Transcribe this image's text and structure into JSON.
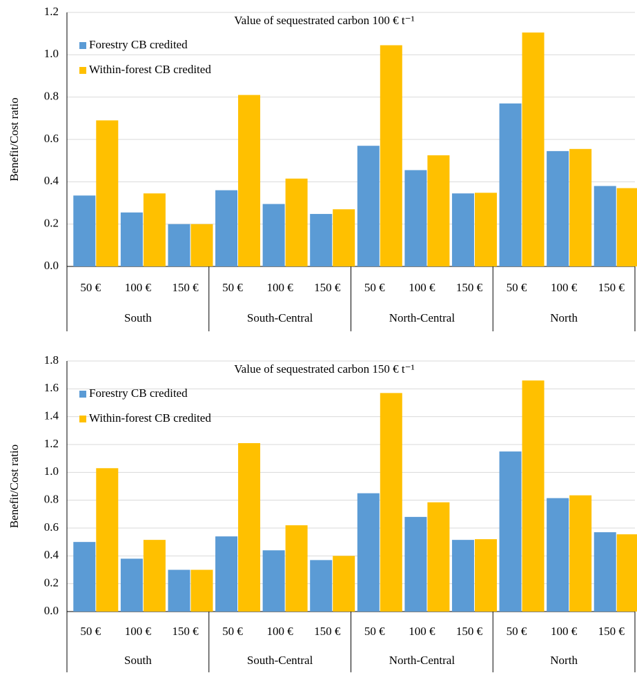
{
  "chart_data": [
    {
      "type": "bar",
      "title": "Value of sequestrated carbon 100 € t⁻¹",
      "y_label": "Benefit/Cost ratio",
      "categories": [
        "50 €",
        "100 €",
        "150 €",
        "50 €",
        "100 €",
        "150 €",
        "50 €",
        "100 €",
        "150 €",
        "50 €",
        "100 €",
        "150 €"
      ],
      "groups": [
        "South",
        "South-Central",
        "North-Central",
        "North"
      ],
      "series": [
        {
          "name": "Forestry CB credited",
          "color": "#5b9bd5",
          "values": [
            0.335,
            0.255,
            0.2,
            0.36,
            0.295,
            0.248,
            0.57,
            0.455,
            0.345,
            0.77,
            0.545,
            0.38
          ]
        },
        {
          "name": "Within-forest CB credited",
          "color": "#ffc000",
          "values": [
            0.69,
            0.345,
            0.2,
            0.81,
            0.415,
            0.27,
            1.045,
            0.525,
            0.348,
            1.105,
            0.555,
            0.37
          ]
        }
      ],
      "ylim": [
        0,
        1.2
      ],
      "yticks": [
        {
          "value": 0,
          "label": "0.0"
        },
        0.2,
        0.4,
        0.6,
        0.8,
        {
          "value": 1,
          "label": "1.0"
        },
        1.2
      ],
      "grid": true,
      "legend": "upper left"
    },
    {
      "type": "bar",
      "title": "Value of sequestrated carbon 150 € t⁻¹",
      "y_label": "Benefit/Cost ratio",
      "categories": [
        "50 €",
        "100 €",
        "150 €",
        "50 €",
        "100 €",
        "150 €",
        "50 €",
        "100 €",
        "150 €",
        "50 €",
        "100 €",
        "150 €"
      ],
      "groups": [
        "South",
        "South-Central",
        "North-Central",
        "North"
      ],
      "series": [
        {
          "name": "Forestry CB credited",
          "color": "#5b9bd5",
          "values": [
            0.5,
            0.38,
            0.3,
            0.54,
            0.44,
            0.37,
            0.85,
            0.68,
            0.515,
            1.15,
            0.815,
            0.57
          ]
        },
        {
          "name": "Within-forest CB credited",
          "color": "#ffc000",
          "values": [
            1.03,
            0.515,
            0.3,
            1.21,
            0.62,
            0.4,
            1.57,
            0.785,
            0.52,
            1.66,
            0.835,
            0.555
          ]
        }
      ],
      "ylim": [
        0,
        1.8
      ],
      "yticks": [
        {
          "value": 0,
          "label": "0.0"
        },
        0.2,
        0.4,
        0.6,
        0.8,
        {
          "value": 1,
          "label": "1.0"
        },
        1.2,
        1.4,
        1.6,
        1.8
      ],
      "grid": true,
      "legend": "upper left"
    }
  ]
}
